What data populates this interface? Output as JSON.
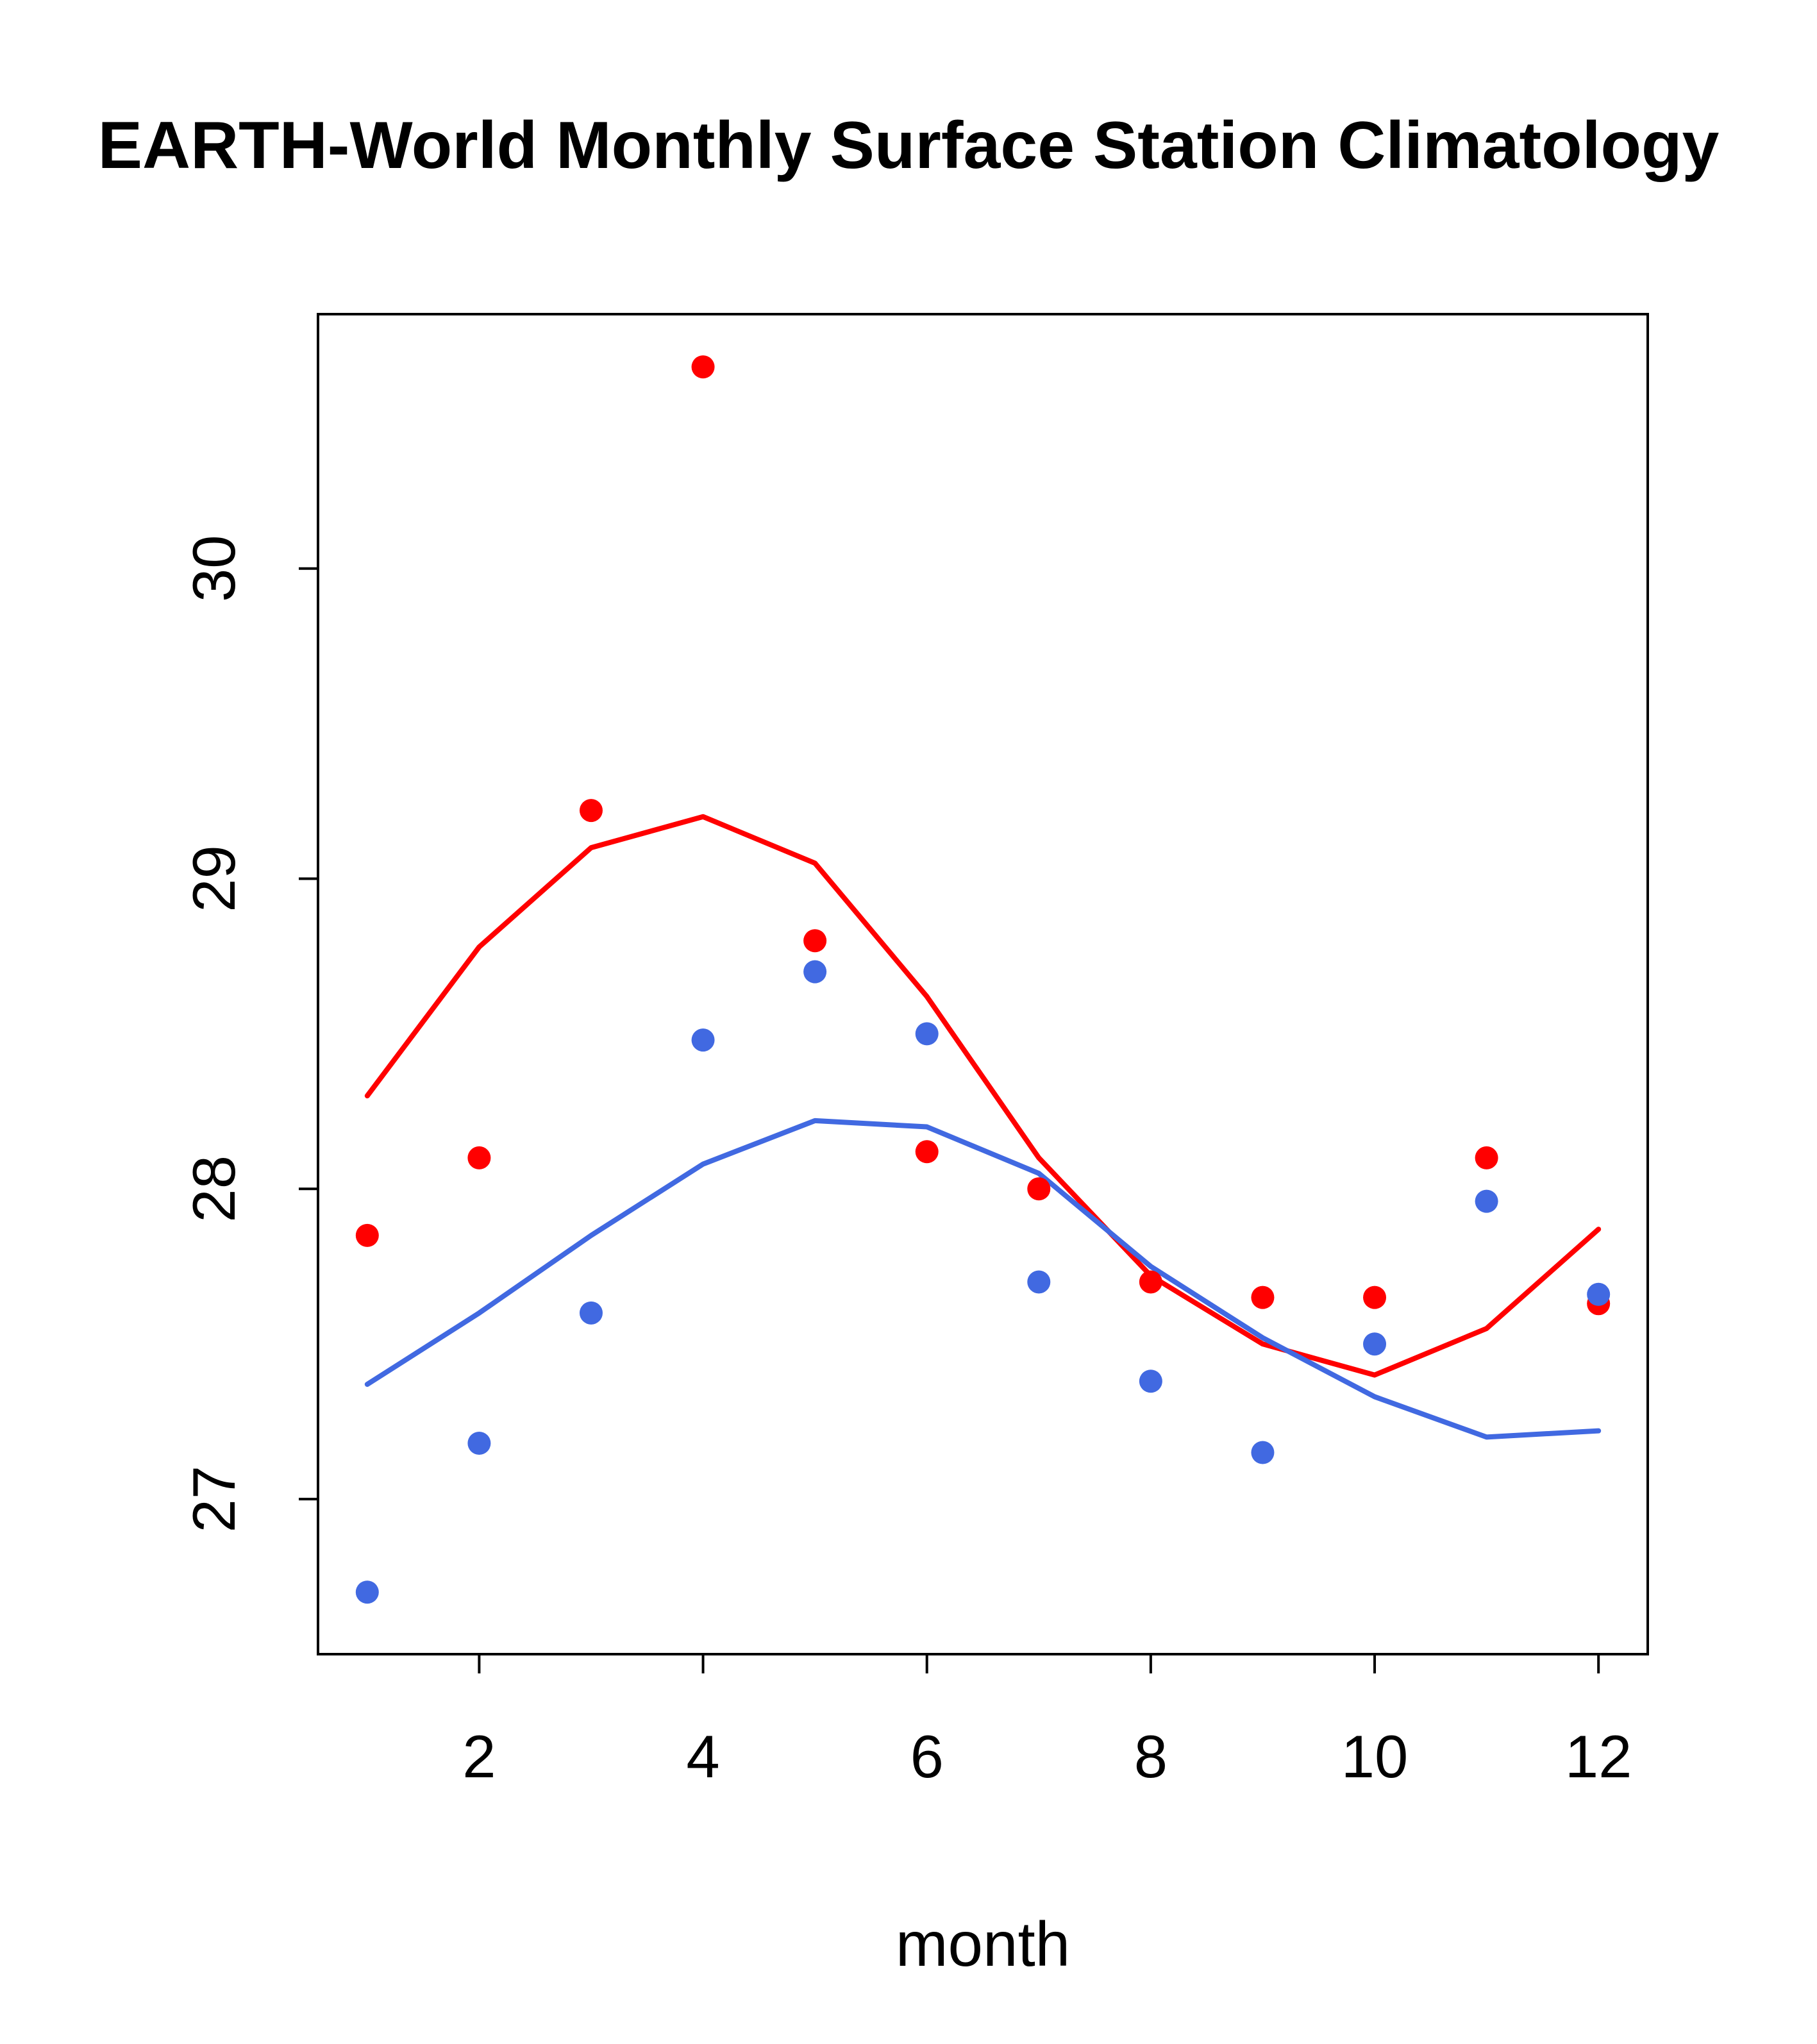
{
  "title": "EARTH-World Monthly Surface Station Climatology",
  "chart_data": {
    "type": "scatter",
    "title": "EARTH-World Monthly Surface Station Climatology",
    "xlabel": "month",
    "ylabel": "",
    "x": [
      1,
      2,
      3,
      4,
      5,
      6,
      7,
      8,
      9,
      10,
      11,
      12
    ],
    "xlim": [
      0.56,
      12.44
    ],
    "ylim": [
      26.5,
      30.82
    ],
    "xticks": [
      2,
      4,
      6,
      8,
      10,
      12
    ],
    "yticks": [
      27,
      28,
      29,
      30
    ],
    "grid": false,
    "legend": "none",
    "series": [
      {
        "name": "red-monthly-points",
        "style": "points",
        "color": "#FF0000",
        "values": [
          27.85,
          28.1,
          29.22,
          30.65,
          28.8,
          28.12,
          28.0,
          27.7,
          27.65,
          27.65,
          28.1,
          27.63
        ]
      },
      {
        "name": "blue-monthly-points",
        "style": "points",
        "color": "#4169E1",
        "values": [
          26.7,
          27.18,
          27.6,
          28.48,
          28.7,
          28.5,
          27.7,
          27.38,
          27.15,
          27.5,
          27.96,
          27.66
        ]
      },
      {
        "name": "red-smoothed-line",
        "style": "line",
        "color": "#FF0000",
        "values": [
          28.3,
          28.78,
          29.1,
          29.2,
          29.05,
          28.62,
          28.1,
          27.72,
          27.5,
          27.4,
          27.55,
          27.87
        ]
      },
      {
        "name": "blue-smoothed-line",
        "style": "line",
        "color": "#4169E1",
        "values": [
          27.37,
          27.6,
          27.85,
          28.08,
          28.22,
          28.2,
          28.05,
          27.75,
          27.52,
          27.33,
          27.2,
          27.22
        ]
      }
    ]
  }
}
